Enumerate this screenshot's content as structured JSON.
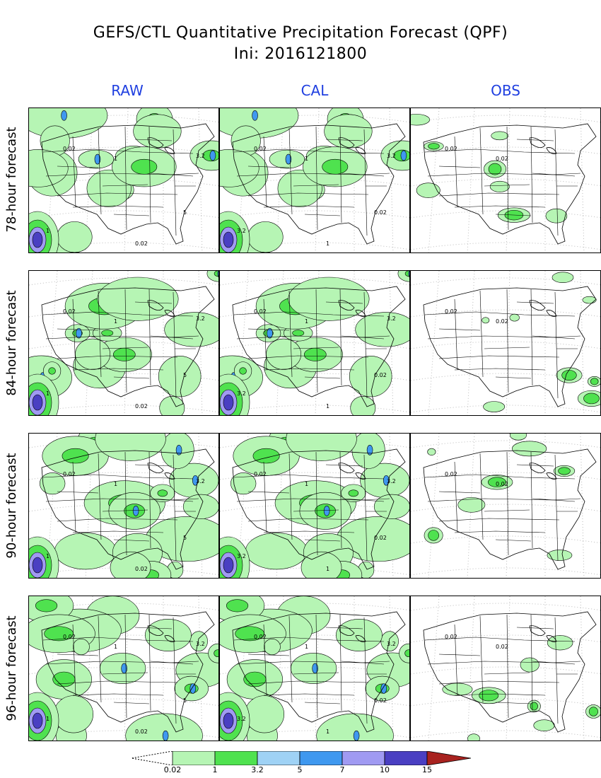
{
  "title_line1": "GEFS/CTL Quantitative Precipitation Forecast (QPF)",
  "title_line2": "Ini: 2016121800",
  "columns": [
    "RAW",
    "CAL",
    "OBS"
  ],
  "rows": [
    "78-hour forecast",
    "84-hour forecast",
    "90-hour forecast",
    "96-hour forecast"
  ],
  "contour_labels": {
    "raw": [
      "0.02",
      "1",
      "3.2",
      "5"
    ],
    "cal": [
      "0.02",
      "1",
      "3.2"
    ],
    "obs": [
      "0.02"
    ]
  },
  "colorbar": {
    "levels": [
      "0.02",
      "1",
      "3.2",
      "5",
      "7",
      "10",
      "15"
    ],
    "colors": [
      "#b6f5b4",
      "#4fe24f",
      "#9fd2f5",
      "#3f98ef",
      "#a09af2",
      "#4a3fc2",
      "#a8221f"
    ]
  }
}
